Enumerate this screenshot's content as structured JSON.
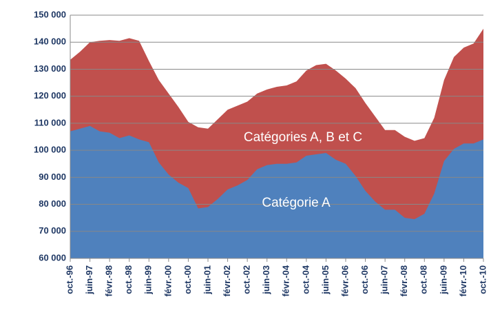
{
  "chart_data": {
    "type": "area",
    "categories": [
      "oct.-96",
      null,
      "juin-97",
      null,
      "févr.-98",
      null,
      "oct.-98",
      null,
      "juin-99",
      null,
      "févr.-00",
      null,
      "oct.-00",
      null,
      "juin-01",
      null,
      "févr.-02",
      null,
      "oct.-02",
      null,
      "juin-03",
      null,
      "févr.-04",
      null,
      "oct.-04",
      null,
      "juin-05",
      null,
      "févr.-06",
      null,
      "oct.-06",
      null,
      "juin-07",
      null,
      "févr.-08",
      null,
      "oct.-08",
      null,
      "juin-09",
      null,
      "févr.-10",
      null,
      "oct.-10"
    ],
    "series": [
      {
        "name": "Catégories A, B et C",
        "color": "#c0504d",
        "values": [
          133500,
          136500,
          140000,
          140500,
          140800,
          140500,
          141500,
          140500,
          133000,
          126000,
          121000,
          116000,
          110500,
          108500,
          108000,
          111500,
          115000,
          116500,
          118000,
          121000,
          122500,
          123500,
          124000,
          125500,
          129500,
          131500,
          132000,
          129500,
          126500,
          123000,
          117500,
          112500,
          107500,
          107500,
          105000,
          103500,
          104500,
          112000,
          126000,
          134500,
          138000,
          139500,
          145000
        ]
      },
      {
        "name": "Catégorie A",
        "color": "#4f81bd",
        "values": [
          107000,
          108000,
          109000,
          107000,
          106500,
          104500,
          105500,
          104000,
          103000,
          95500,
          91000,
          88000,
          86000,
          78500,
          79000,
          82000,
          85500,
          87000,
          89000,
          93000,
          94500,
          95000,
          95000,
          95500,
          98000,
          98500,
          99000,
          96500,
          95000,
          90500,
          85000,
          81000,
          78000,
          78000,
          75000,
          74500,
          76500,
          84000,
          96000,
          100500,
          102500,
          102500,
          104000
        ]
      }
    ],
    "ylim": [
      60000,
      150000
    ],
    "yticks": [
      {
        "value": 60000,
        "label": "60 000"
      },
      {
        "value": 70000,
        "label": "70 000"
      },
      {
        "value": 80000,
        "label": "80 000"
      },
      {
        "value": 90000,
        "label": "90 000"
      },
      {
        "value": 100000,
        "label": "100 000"
      },
      {
        "value": 110000,
        "label": "110 000"
      },
      {
        "value": 120000,
        "label": "120 000"
      },
      {
        "value": 130000,
        "label": "130 000"
      },
      {
        "value": 140000,
        "label": "140 000"
      },
      {
        "value": 150000,
        "label": "150 000"
      }
    ],
    "grid": true
  }
}
